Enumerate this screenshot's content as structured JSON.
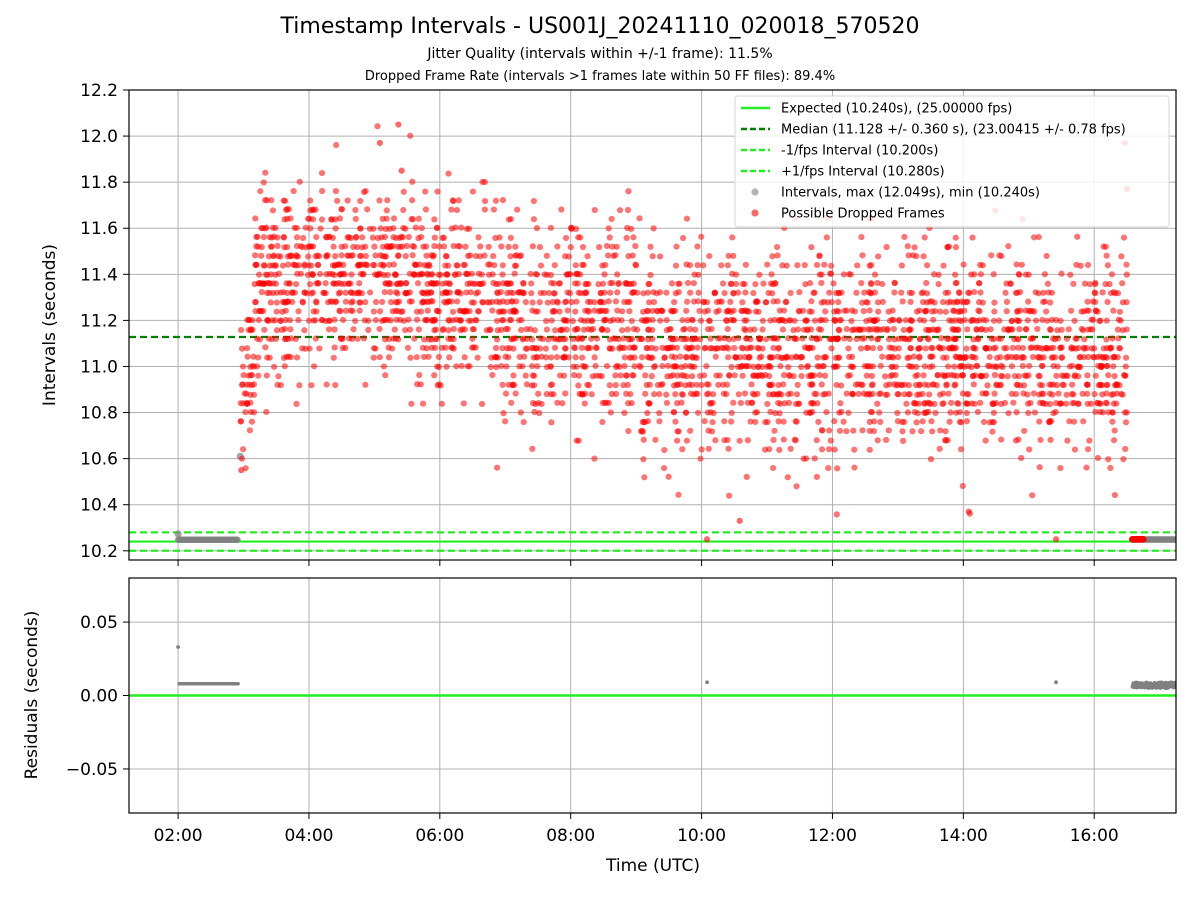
{
  "chart_data": [
    {
      "type": "scatter",
      "title": "Timestamp Intervals - US001J_20241110_020018_570520",
      "subtitle_1": "Jitter Quality (intervals within +/-1 frame): 11.5%",
      "subtitle_2": "Dropped Frame Rate (intervals >1 frames late within 50 FF files): 89.4%",
      "xlabel": "Time (UTC)",
      "ylabel": "Intervals (seconds)",
      "xlim": [
        "01:15",
        "17:15"
      ],
      "ylim": [
        10.16,
        12.2
      ],
      "x_ticks": [
        "02:00",
        "04:00",
        "06:00",
        "08:00",
        "10:00",
        "12:00",
        "14:00",
        "16:00"
      ],
      "y_ticks": [
        "10.2",
        "10.4",
        "10.6",
        "10.8",
        "11.0",
        "11.2",
        "11.4",
        "11.6",
        "11.8",
        "12.0",
        "12.2"
      ],
      "grid": true,
      "legend_position": "top-right",
      "reference_lines": [
        {
          "name": "Expected (10.240s), (25.00000 fps)",
          "y": 10.24,
          "color": "#22ee22",
          "style": "solid"
        },
        {
          "name": "Median (11.128 +/- 0.360 s), (23.00415 +/- 0.78 fps)",
          "y": 11.128,
          "color": "#008000",
          "style": "dashed"
        },
        {
          "name": "-1/fps Interval (10.200s)",
          "y": 10.2,
          "color": "#22ee22",
          "style": "dashed"
        },
        {
          "name": "+1/fps Interval (10.280s)",
          "y": 10.28,
          "color": "#22ee22",
          "style": "dashed"
        }
      ],
      "series": [
        {
          "name": "Intervals, max (12.049s), min (10.240s)",
          "color": "#808080",
          "segments": [
            {
              "x_start": "02:00",
              "x_end": "02:55",
              "y": 10.248
            },
            {
              "x_start": "16:35",
              "x_end": "17:15",
              "y": 10.249
            }
          ],
          "points": [
            {
              "x": "02:00",
              "y": 10.273
            },
            {
              "x": "02:57",
              "y": 10.61
            }
          ]
        },
        {
          "name": "Possible Dropped Frames",
          "color": "#ff0000",
          "clusters": [
            {
              "x_start": "02:57",
              "x_end": "03:10",
              "y_min": 10.55,
              "y_max": 11.2,
              "mean": 10.95,
              "sd": 0.18
            },
            {
              "x_start": "03:10",
              "x_end": "05:40",
              "y_min": 10.73,
              "y_max": 12.05,
              "mean": 11.38,
              "sd": 0.2
            },
            {
              "x_start": "05:40",
              "x_end": "06:50",
              "y_min": 10.84,
              "y_max": 11.9,
              "mean": 11.32,
              "sd": 0.19
            },
            {
              "x_start": "06:50",
              "x_end": "09:00",
              "y_min": 10.48,
              "y_max": 11.77,
              "mean": 11.17,
              "sd": 0.22
            },
            {
              "x_start": "09:00",
              "x_end": "12:00",
              "y_min": 10.33,
              "y_max": 11.65,
              "mean": 11.08,
              "sd": 0.23
            },
            {
              "x_start": "12:00",
              "x_end": "16:30",
              "y_min": 10.37,
              "y_max": 11.97,
              "mean": 11.05,
              "sd": 0.22
            }
          ],
          "points": [
            {
              "x": "05:05",
              "y": 11.97
            },
            {
              "x": "05:22",
              "y": 12.05
            },
            {
              "x": "05:25",
              "y": 11.85
            },
            {
              "x": "10:05",
              "y": 10.25
            },
            {
              "x": "15:25",
              "y": 10.25
            },
            {
              "x": "16:28",
              "y": 11.97
            },
            {
              "x": "16:30",
              "y": 11.77
            },
            {
              "x": "10:35",
              "y": 10.33
            },
            {
              "x": "14:05",
              "y": 10.37
            },
            {
              "x": "02:58",
              "y": 10.55
            }
          ],
          "end_cluster": {
            "x_start": "16:35",
            "x_end": "16:45",
            "y": 10.25
          }
        }
      ]
    },
    {
      "type": "scatter",
      "xlabel": "Time (UTC)",
      "ylabel": "Residuals (seconds)",
      "xlim": [
        "01:15",
        "17:15"
      ],
      "ylim": [
        -0.08,
        0.08
      ],
      "y_ticks": [
        "0.05",
        "0.00",
        "−0.05"
      ],
      "grid": true,
      "reference_lines": [
        {
          "y": 0.0,
          "color": "#22ee22",
          "style": "solid"
        }
      ],
      "series": [
        {
          "color": "#808080",
          "segments": [
            {
              "x_start": "02:01",
              "x_end": "02:55",
              "y": 0.008
            },
            {
              "x_start": "16:35",
              "x_end": "17:15",
              "y_min": 0.005,
              "y_max": 0.009
            }
          ],
          "points": [
            {
              "x": "02:00",
              "y": 0.033
            },
            {
              "x": "10:05",
              "y": 0.009
            },
            {
              "x": "15:25",
              "y": 0.009
            }
          ]
        }
      ]
    }
  ]
}
